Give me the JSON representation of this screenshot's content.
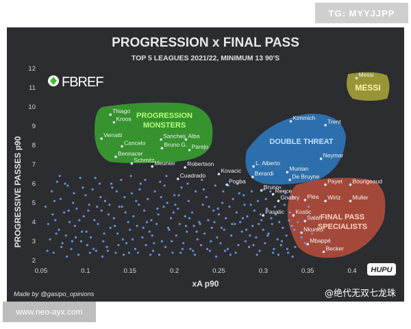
{
  "watermarks": {
    "top_right": "TG: MYYJJPP",
    "bottom_left": "www.neo-ayx.com",
    "weibo": "@绝代无双七龙珠",
    "hupu": "HUPU"
  },
  "brand": {
    "logo_text": "FBREF"
  },
  "credit": "Made by @gasipo_opinions",
  "colors": {
    "background": "#2b2d31",
    "point": "#6f9be8",
    "label": "#f2f2f2",
    "progression": "#3cbf2e",
    "double": "#2f86d6",
    "final": "#d9553f",
    "messi": "#c8c23a"
  },
  "chart_data": {
    "type": "scatter",
    "title": "PROGRESSION x FINAL PASS",
    "subtitle": "TOP 5 LEAGUES 2021/22, MINIMUM 13 90'S",
    "xlabel": "xA p90",
    "ylabel": "PROGRESSIVE PASSES p90",
    "xlim": [
      0.05,
      0.42
    ],
    "ylim": [
      2,
      12
    ],
    "xticks": [
      "0.05",
      "0.1",
      "0.15",
      "0.2",
      "0.25",
      "0.3",
      "0.35",
      "0.4"
    ],
    "yticks": [
      "2",
      "3",
      "4",
      "5",
      "6",
      "7",
      "8",
      "9",
      "10",
      "11",
      "12"
    ],
    "grid": false,
    "groups": [
      {
        "label": "PROGRESSION\nMONSTERS",
        "kind": "progression"
      },
      {
        "label": "DOUBLE THREAT",
        "kind": "double"
      },
      {
        "label": "FINAL PASS\nSPECIALISTS",
        "kind": "final"
      },
      {
        "label": "MESSI",
        "kind": "messi"
      }
    ],
    "labeled_points": [
      {
        "name": "Messi",
        "x": 0.405,
        "y": 11.5
      },
      {
        "name": "Thiago",
        "x": 0.128,
        "y": 9.6
      },
      {
        "name": "Kroos",
        "x": 0.132,
        "y": 9.2
      },
      {
        "name": "Verratti",
        "x": 0.118,
        "y": 8.35
      },
      {
        "name": "Sanches",
        "x": 0.185,
        "y": 8.3
      },
      {
        "name": "Alba",
        "x": 0.213,
        "y": 8.3
      },
      {
        "name": "Cancelo",
        "x": 0.141,
        "y": 7.95
      },
      {
        "name": "Bruno G.",
        "x": 0.186,
        "y": 7.85
      },
      {
        "name": "Parejo",
        "x": 0.217,
        "y": 7.75
      },
      {
        "name": "Bennacer",
        "x": 0.134,
        "y": 7.4
      },
      {
        "name": "Schmitz",
        "x": 0.152,
        "y": 7.05
      },
      {
        "name": "Meunier",
        "x": 0.175,
        "y": 6.9
      },
      {
        "name": "Robertson",
        "x": 0.212,
        "y": 6.85
      },
      {
        "name": "Kovacic",
        "x": 0.25,
        "y": 6.5
      },
      {
        "name": "Berardi",
        "x": 0.288,
        "y": 6.35
      },
      {
        "name": "Cuadrado",
        "x": 0.204,
        "y": 6.25
      },
      {
        "name": "Pogba",
        "x": 0.259,
        "y": 5.95
      },
      {
        "name": "Bruno",
        "x": 0.298,
        "y": 5.65
      },
      {
        "name": "L. Alberto",
        "x": 0.289,
        "y": 6.9
      },
      {
        "name": "Munian",
        "x": 0.327,
        "y": 6.6
      },
      {
        "name": "De Bruyne",
        "x": 0.33,
        "y": 6.2
      },
      {
        "name": "Kimmich",
        "x": 0.331,
        "y": 9.25
      },
      {
        "name": "Trent",
        "x": 0.37,
        "y": 9.05
      },
      {
        "name": "Neymar",
        "x": 0.365,
        "y": 7.3
      },
      {
        "name": "Reece",
        "x": 0.311,
        "y": 5.45
      },
      {
        "name": "Gnabry",
        "x": 0.317,
        "y": 5.1
      },
      {
        "name": "Pléa",
        "x": 0.347,
        "y": 5.15
      },
      {
        "name": "Wirtz",
        "x": 0.37,
        "y": 5.1
      },
      {
        "name": "Muller",
        "x": 0.398,
        "y": 5.1
      },
      {
        "name": "Payet",
        "x": 0.37,
        "y": 5.95
      },
      {
        "name": "Bourigeaud",
        "x": 0.398,
        "y": 5.95
      },
      {
        "name": "Pasalic",
        "x": 0.3,
        "y": 4.35
      },
      {
        "name": "Kostic",
        "x": 0.334,
        "y": 4.35
      },
      {
        "name": "Salah",
        "x": 0.347,
        "y": 4.05
      },
      {
        "name": "Nkunku",
        "x": 0.343,
        "y": 3.45
      },
      {
        "name": "Mbappé",
        "x": 0.35,
        "y": 2.85
      },
      {
        "name": "Becker",
        "x": 0.368,
        "y": 2.45
      }
    ],
    "background_points": [
      [
        0.055,
        4.8
      ],
      [
        0.06,
        3.1
      ],
      [
        0.062,
        5.6
      ],
      [
        0.064,
        2.4
      ],
      [
        0.066,
        4.1
      ],
      [
        0.068,
        6.1
      ],
      [
        0.07,
        3.6
      ],
      [
        0.072,
        5.2
      ],
      [
        0.074,
        2.9
      ],
      [
        0.076,
        4.5
      ],
      [
        0.078,
        3.3
      ],
      [
        0.08,
        5.9
      ],
      [
        0.082,
        4.0
      ],
      [
        0.084,
        2.6
      ],
      [
        0.086,
        5.0
      ],
      [
        0.088,
        3.8
      ],
      [
        0.09,
        4.7
      ],
      [
        0.092,
        2.3
      ],
      [
        0.094,
        6.3
      ],
      [
        0.096,
        3.5
      ],
      [
        0.098,
        4.3
      ],
      [
        0.1,
        5.4
      ],
      [
        0.102,
        2.8
      ],
      [
        0.104,
        4.9
      ],
      [
        0.106,
        3.2
      ],
      [
        0.108,
        5.7
      ],
      [
        0.11,
        4.1
      ],
      [
        0.112,
        2.5
      ],
      [
        0.114,
        3.9
      ],
      [
        0.116,
        6.0
      ],
      [
        0.118,
        4.6
      ],
      [
        0.12,
        3.0
      ],
      [
        0.122,
        5.1
      ],
      [
        0.124,
        2.7
      ],
      [
        0.126,
        4.4
      ],
      [
        0.128,
        3.7
      ],
      [
        0.13,
        5.8
      ],
      [
        0.132,
        4.2
      ],
      [
        0.134,
        2.4
      ],
      [
        0.136,
        3.4
      ],
      [
        0.138,
        4.8
      ],
      [
        0.14,
        6.2
      ],
      [
        0.142,
        3.1
      ],
      [
        0.144,
        5.3
      ],
      [
        0.146,
        2.9
      ],
      [
        0.148,
        4.0
      ],
      [
        0.15,
        3.6
      ],
      [
        0.152,
        5.5
      ],
      [
        0.154,
        4.3
      ],
      [
        0.156,
        2.6
      ],
      [
        0.158,
        3.8
      ],
      [
        0.16,
        4.9
      ],
      [
        0.162,
        6.0
      ],
      [
        0.164,
        3.2
      ],
      [
        0.166,
        4.6
      ],
      [
        0.168,
        2.8
      ],
      [
        0.17,
        5.2
      ],
      [
        0.172,
        3.5
      ],
      [
        0.174,
        4.1
      ],
      [
        0.176,
        2.5
      ],
      [
        0.178,
        5.6
      ],
      [
        0.18,
        3.9
      ],
      [
        0.182,
        4.4
      ],
      [
        0.184,
        6.1
      ],
      [
        0.186,
        3.0
      ],
      [
        0.188,
        4.8
      ],
      [
        0.19,
        2.7
      ],
      [
        0.192,
        5.0
      ],
      [
        0.194,
        3.6
      ],
      [
        0.196,
        4.2
      ],
      [
        0.198,
        2.4
      ],
      [
        0.2,
        5.4
      ],
      [
        0.202,
        3.3
      ],
      [
        0.204,
        4.7
      ],
      [
        0.206,
        3.9
      ],
      [
        0.208,
        5.8
      ],
      [
        0.21,
        2.9
      ],
      [
        0.212,
        4.3
      ],
      [
        0.214,
        3.5
      ],
      [
        0.216,
        5.1
      ],
      [
        0.218,
        2.6
      ],
      [
        0.22,
        4.5
      ],
      [
        0.222,
        3.8
      ],
      [
        0.224,
        5.6
      ],
      [
        0.226,
        3.1
      ],
      [
        0.228,
        4.0
      ],
      [
        0.23,
        2.8
      ],
      [
        0.232,
        4.9
      ],
      [
        0.234,
        3.4
      ],
      [
        0.236,
        5.3
      ],
      [
        0.238,
        4.1
      ],
      [
        0.24,
        2.5
      ],
      [
        0.242,
        3.7
      ],
      [
        0.244,
        4.6
      ],
      [
        0.246,
        5.9
      ],
      [
        0.248,
        3.2
      ],
      [
        0.25,
        4.4
      ],
      [
        0.252,
        2.9
      ],
      [
        0.254,
        5.0
      ],
      [
        0.256,
        3.6
      ],
      [
        0.258,
        4.2
      ],
      [
        0.26,
        2.6
      ],
      [
        0.262,
        4.8
      ],
      [
        0.264,
        3.3
      ],
      [
        0.266,
        5.2
      ],
      [
        0.268,
        3.9
      ],
      [
        0.27,
        4.5
      ],
      [
        0.272,
        2.8
      ],
      [
        0.274,
        4.0
      ],
      [
        0.276,
        3.5
      ],
      [
        0.278,
        5.4
      ],
      [
        0.28,
        3.0
      ],
      [
        0.282,
        4.3
      ],
      [
        0.284,
        2.7
      ],
      [
        0.286,
        4.9
      ],
      [
        0.288,
        3.8
      ],
      [
        0.29,
        4.6
      ],
      [
        0.292,
        3.2
      ],
      [
        0.294,
        5.1
      ],
      [
        0.296,
        2.5
      ],
      [
        0.298,
        4.1
      ],
      [
        0.3,
        3.6
      ],
      [
        0.302,
        2.9
      ],
      [
        0.304,
        4.7
      ],
      [
        0.306,
        3.4
      ],
      [
        0.308,
        5.6
      ],
      [
        0.31,
        3.9
      ],
      [
        0.312,
        2.6
      ],
      [
        0.314,
        4.4
      ],
      [
        0.316,
        3.1
      ],
      [
        0.318,
        4.0
      ],
      [
        0.32,
        2.8
      ],
      [
        0.322,
        3.7
      ],
      [
        0.324,
        4.9
      ],
      [
        0.326,
        3.3
      ],
      [
        0.328,
        2.4
      ],
      [
        0.33,
        4.5
      ],
      [
        0.332,
        3.8
      ],
      [
        0.334,
        5.3
      ],
      [
        0.336,
        2.7
      ],
      [
        0.058,
        3.9
      ],
      [
        0.065,
        5.1
      ],
      [
        0.073,
        2.7
      ],
      [
        0.081,
        4.6
      ],
      [
        0.089,
        3.2
      ],
      [
        0.097,
        5.8
      ],
      [
        0.105,
        2.4
      ],
      [
        0.113,
        4.8
      ],
      [
        0.121,
        3.4
      ],
      [
        0.129,
        6.0
      ],
      [
        0.137,
        2.8
      ],
      [
        0.145,
        4.5
      ],
      [
        0.153,
        3.1
      ],
      [
        0.161,
        5.7
      ],
      [
        0.169,
        4.0
      ],
      [
        0.177,
        2.9
      ],
      [
        0.185,
        5.3
      ],
      [
        0.193,
        3.7
      ],
      [
        0.201,
        4.9
      ],
      [
        0.209,
        2.6
      ],
      [
        0.217,
        4.2
      ],
      [
        0.225,
        3.5
      ],
      [
        0.233,
        5.7
      ],
      [
        0.241,
        3.0
      ],
      [
        0.249,
        4.7
      ],
      [
        0.257,
        2.5
      ],
      [
        0.265,
        3.9
      ],
      [
        0.273,
        5.5
      ],
      [
        0.281,
        3.6
      ],
      [
        0.289,
        2.8
      ],
      [
        0.297,
        4.4
      ],
      [
        0.305,
        3.3
      ],
      [
        0.313,
        4.8
      ],
      [
        0.321,
        3.0
      ],
      [
        0.329,
        4.1
      ],
      [
        0.063,
        4.4
      ],
      [
        0.071,
        6.4
      ],
      [
        0.079,
        2.2
      ],
      [
        0.087,
        5.5
      ],
      [
        0.095,
        3.0
      ],
      [
        0.103,
        4.6
      ],
      [
        0.111,
        6.3
      ],
      [
        0.119,
        2.2
      ],
      [
        0.127,
        4.9
      ],
      [
        0.135,
        5.6
      ],
      [
        0.143,
        2.3
      ],
      [
        0.151,
        6.4
      ],
      [
        0.159,
        2.4
      ],
      [
        0.167,
        6.2
      ],
      [
        0.175,
        3.3
      ],
      [
        0.183,
        2.3
      ],
      [
        0.191,
        6.4
      ],
      [
        0.199,
        4.5
      ],
      [
        0.207,
        2.4
      ],
      [
        0.215,
        6.0
      ],
      [
        0.223,
        2.3
      ],
      [
        0.231,
        6.2
      ],
      [
        0.239,
        4.8
      ],
      [
        0.247,
        2.2
      ],
      [
        0.255,
        5.6
      ],
      [
        0.263,
        2.3
      ],
      [
        0.271,
        6.0
      ],
      [
        0.279,
        4.9
      ],
      [
        0.287,
        5.6
      ],
      [
        0.295,
        3.9
      ],
      [
        0.303,
        5.2
      ],
      [
        0.311,
        2.4
      ],
      [
        0.319,
        5.8
      ],
      [
        0.327,
        2.6
      ],
      [
        0.335,
        3.6
      ],
      [
        0.057,
        2.5
      ],
      [
        0.067,
        3.4
      ],
      [
        0.077,
        6.0
      ],
      [
        0.085,
        3.0
      ],
      [
        0.093,
        4.1
      ],
      [
        0.101,
        3.5
      ],
      [
        0.109,
        2.6
      ],
      [
        0.117,
        5.3
      ],
      [
        0.125,
        2.5
      ],
      [
        0.133,
        3.8
      ],
      [
        0.141,
        4.8
      ],
      [
        0.149,
        2.4
      ],
      [
        0.157,
        5.1
      ],
      [
        0.165,
        3.7
      ],
      [
        0.173,
        2.3
      ],
      [
        0.181,
        4.7
      ],
      [
        0.189,
        5.9
      ],
      [
        0.197,
        3.0
      ],
      [
        0.205,
        5.4
      ],
      [
        0.213,
        3.8
      ],
      [
        0.221,
        2.5
      ],
      [
        0.229,
        3.9
      ],
      [
        0.237,
        2.6
      ],
      [
        0.245,
        4.0
      ],
      [
        0.253,
        3.7
      ],
      [
        0.261,
        5.9
      ],
      [
        0.269,
        2.4
      ],
      [
        0.277,
        4.2
      ],
      [
        0.285,
        3.3
      ],
      [
        0.293,
        2.3
      ],
      [
        0.301,
        5.7
      ],
      [
        0.309,
        4.2
      ],
      [
        0.317,
        2.3
      ],
      [
        0.325,
        5.5
      ],
      [
        0.333,
        2.2
      ],
      [
        0.339,
        4.0
      ],
      [
        0.343,
        3.2
      ],
      [
        0.347,
        2.9
      ],
      [
        0.351,
        4.8
      ],
      [
        0.355,
        3.4
      ]
    ]
  }
}
